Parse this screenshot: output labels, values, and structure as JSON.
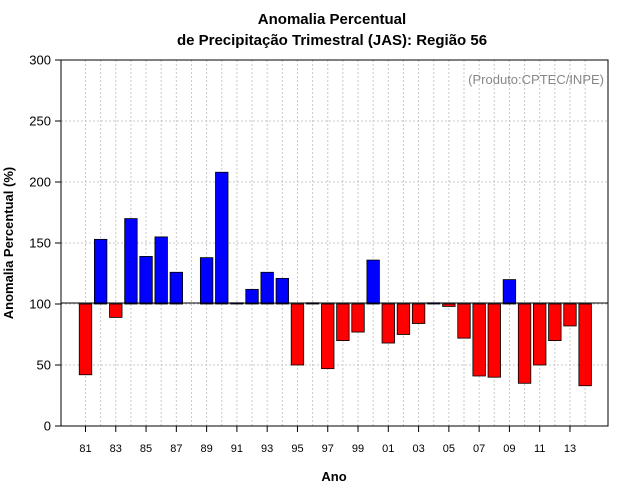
{
  "chart_data": {
    "type": "bar",
    "title": "Anomalia Percentual",
    "subtitle": "de Precipitação Trimestral (JAS): Região 56",
    "credit": "(Produto:CPTEC/INPE)",
    "xlabel": "Ano",
    "ylabel": "Anomalia Percentual (%)",
    "ylim": [
      0,
      300
    ],
    "yticks": [
      0,
      50,
      100,
      150,
      200,
      250,
      300
    ],
    "yticklabels": [
      "0",
      "50",
      "100",
      "150",
      "200",
      "250",
      "300"
    ],
    "baseline": 100,
    "grid": true,
    "categories": [
      "81",
      "82",
      "83",
      "84",
      "85",
      "86",
      "87",
      "88",
      "89",
      "90",
      "91",
      "92",
      "93",
      "94",
      "95",
      "96",
      "97",
      "98",
      "99",
      "00",
      "01",
      "02",
      "03",
      "04",
      "05",
      "06",
      "07",
      "08",
      "09",
      "10",
      "11",
      "12",
      "13",
      "14"
    ],
    "xticklabels": [
      "81",
      "83",
      "85",
      "87",
      "89",
      "91",
      "93",
      "95",
      "97",
      "99",
      "01",
      "03",
      "05",
      "07",
      "09",
      "11",
      "13"
    ],
    "values": [
      42,
      153,
      89,
      170,
      139,
      155,
      126,
      null,
      138,
      208,
      101,
      112,
      126,
      121,
      50,
      101,
      47,
      70,
      77,
      136,
      68,
      75,
      84,
      101,
      98,
      72,
      41,
      40,
      120,
      35,
      50,
      70,
      82,
      33
    ],
    "colors": {
      "above": "#0000ff",
      "below": "#ff0000",
      "edge": "#000000"
    }
  }
}
